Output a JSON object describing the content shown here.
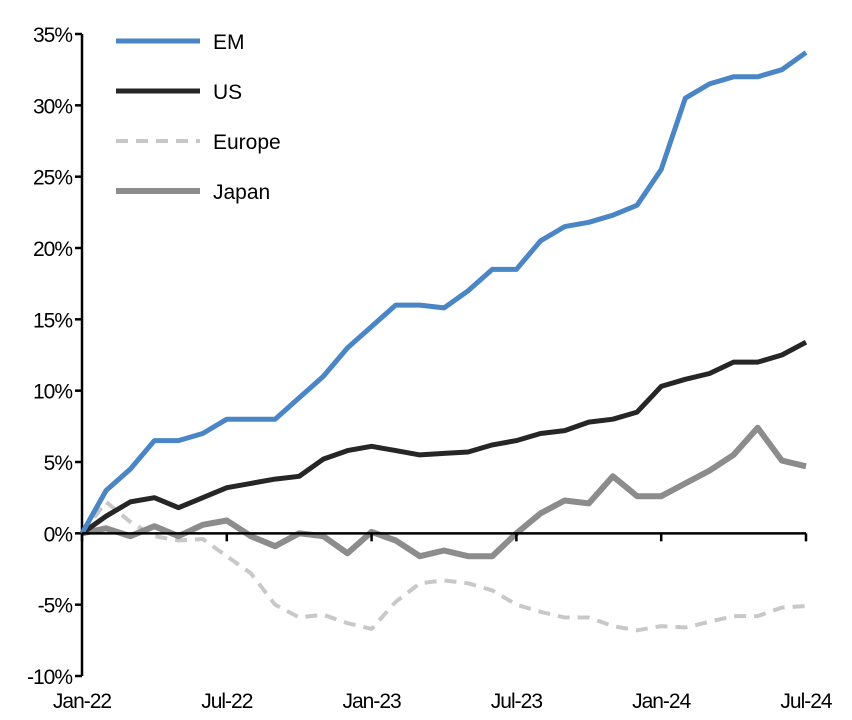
{
  "chart_data": {
    "type": "line",
    "title": "",
    "xlabel": "",
    "ylabel": "",
    "ylim": [
      -10,
      35
    ],
    "yticks": [
      "-10%",
      "-5%",
      "0%",
      "5%",
      "10%",
      "15%",
      "20%",
      "25%",
      "30%",
      "35%"
    ],
    "ytick_values": [
      -10,
      -5,
      0,
      5,
      10,
      15,
      20,
      25,
      30,
      35
    ],
    "xticks": [
      "Jan-22",
      "Jul-22",
      "Jan-23",
      "Jul-23",
      "Jan-24",
      "Jul-24"
    ],
    "grid": false,
    "legend_position": "top-left",
    "x": [
      "Jan-22",
      "Feb-22",
      "Mar-22",
      "Apr-22",
      "May-22",
      "Jun-22",
      "Jul-22",
      "Aug-22",
      "Sep-22",
      "Oct-22",
      "Nov-22",
      "Dec-22",
      "Jan-23",
      "Feb-23",
      "Mar-23",
      "Apr-23",
      "May-23",
      "Jun-23",
      "Jul-23",
      "Aug-23",
      "Sep-23",
      "Oct-23",
      "Nov-23",
      "Dec-23",
      "Jan-24",
      "Feb-24",
      "Mar-24",
      "Apr-24",
      "May-24",
      "Jun-24",
      "Jul-24"
    ],
    "series": [
      {
        "name": "EM",
        "color": "#4A86C5",
        "style": "solid",
        "values": [
          0,
          3,
          4.5,
          6.5,
          6.5,
          7,
          8,
          8,
          8,
          9.5,
          11,
          13,
          14.5,
          16,
          16,
          15.8,
          17,
          18.5,
          18.5,
          20.5,
          21.5,
          21.8,
          22.3,
          23,
          25.5,
          30.5,
          31.5,
          32,
          32,
          32.5,
          33.7
        ]
      },
      {
        "name": "US",
        "color": "#262626",
        "style": "solid",
        "values": [
          0,
          1.2,
          2.2,
          2.5,
          1.8,
          2.5,
          3.2,
          3.5,
          3.8,
          4,
          5.2,
          5.8,
          6.1,
          5.8,
          5.5,
          5.6,
          5.7,
          6.2,
          6.5,
          7,
          7.2,
          7.8,
          8,
          8.5,
          10.3,
          10.8,
          11.2,
          12,
          12,
          12.5,
          13.4
        ]
      },
      {
        "name": "Europe",
        "color": "#C8C8C8",
        "style": "dashed",
        "values": [
          0,
          2.2,
          0.8,
          -0.2,
          -0.5,
          -0.4,
          -1.6,
          -2.8,
          -5,
          -5.9,
          -5.7,
          -6.3,
          -6.7,
          -4.8,
          -3.5,
          -3.3,
          -3.5,
          -4,
          -5,
          -5.5,
          -5.9,
          -5.9,
          -6.5,
          -6.8,
          -6.5,
          -6.6,
          -6.2,
          -5.8,
          -5.8,
          -5.2,
          -5.1
        ]
      },
      {
        "name": "Japan",
        "color": "#8C8C8C",
        "style": "solid",
        "values": [
          0,
          0.35,
          -0.2,
          0.5,
          -0.2,
          0.6,
          0.9,
          -0.2,
          -0.9,
          0,
          -0.2,
          -1.4,
          0.1,
          -0.5,
          -1.6,
          -1.2,
          -1.6,
          -1.6,
          0,
          1.4,
          2.3,
          2.1,
          4,
          2.6,
          2.6,
          3.5,
          4.4,
          5.5,
          7.4,
          5.1,
          4.7
        ]
      }
    ]
  }
}
